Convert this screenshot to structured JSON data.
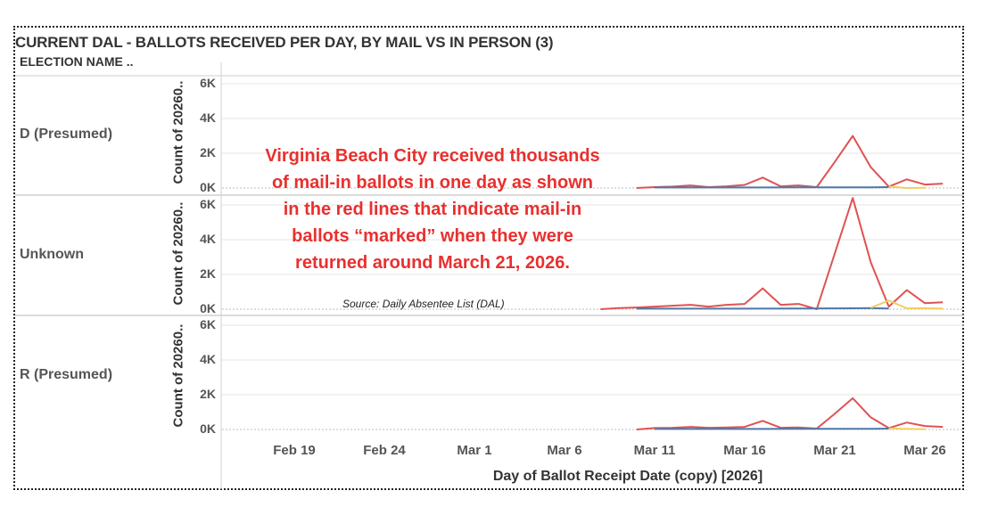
{
  "title": "CURRENT DAL - BALLOTS RECEIVED PER DAY, BY MAIL VS IN PERSON (3)",
  "row_header": "ELECTION NAME ..",
  "colors": {
    "mail": "#e05252",
    "in_person": "#4e79a7",
    "other": "#f1ce63",
    "annotation": "#e8302e",
    "grid": "#e6e6e6",
    "divider": "#cfcfcf"
  },
  "annotation": "Virginia Beach City received thousands of mail-in ballots in one day as shown in the red lines that indicate mail-in ballots “marked” when they were returned around March 21, 2026.",
  "source": "Source: Daily Absentee List (DAL)",
  "chart_data": {
    "type": "line",
    "xlabel": "Day of Ballot Receipt Date (copy) [2026]",
    "ylabel": "Count of 20260..",
    "x_ticks": [
      "Feb 19",
      "Feb 24",
      "Mar 1",
      "Mar 6",
      "Mar 11",
      "Mar 16",
      "Mar 21",
      "Mar 26"
    ],
    "x_dates": [
      "2026-02-19",
      "2026-02-24",
      "2026-03-01",
      "2026-03-06",
      "2026-03-11",
      "2026-03-16",
      "2026-03-21",
      "2026-03-26"
    ],
    "xlim": [
      "2026-02-16",
      "2026-03-27"
    ],
    "y_ticks": [
      "6K",
      "4K",
      "2K",
      "0K"
    ],
    "y_tick_values": [
      6000,
      4000,
      2000,
      0
    ],
    "ylim": [
      0,
      6500
    ],
    "grid": true,
    "panels": [
      {
        "label": "D (Presumed)",
        "series": [
          {
            "color": "mail",
            "points": [
              [
                "2026-03-10",
                0
              ],
              [
                "2026-03-11",
                50
              ],
              [
                "2026-03-12",
                80
              ],
              [
                "2026-03-13",
                150
              ],
              [
                "2026-03-14",
                50
              ],
              [
                "2026-03-15",
                100
              ],
              [
                "2026-03-16",
                180
              ],
              [
                "2026-03-17",
                600
              ],
              [
                "2026-03-18",
                100
              ],
              [
                "2026-03-19",
                150
              ],
              [
                "2026-03-20",
                50
              ],
              [
                "2026-03-21",
                1500
              ],
              [
                "2026-03-22",
                3000
              ],
              [
                "2026-03-23",
                1200
              ],
              [
                "2026-03-24",
                80
              ],
              [
                "2026-03-25",
                500
              ],
              [
                "2026-03-26",
                200
              ],
              [
                "2026-03-27",
                250
              ]
            ]
          },
          {
            "color": "in_person",
            "points": [
              [
                "2026-03-11",
                30
              ],
              [
                "2026-03-14",
                30
              ],
              [
                "2026-03-17",
                30
              ],
              [
                "2026-03-20",
                40
              ],
              [
                "2026-03-23",
                40
              ],
              [
                "2026-03-24",
                50
              ]
            ]
          },
          {
            "color": "other",
            "points": [
              [
                "2026-03-24",
                80
              ],
              [
                "2026-03-25",
                0
              ],
              [
                "2026-03-26",
                10
              ]
            ]
          }
        ]
      },
      {
        "label": "Unknown",
        "series": [
          {
            "color": "mail",
            "points": [
              [
                "2026-03-08",
                0
              ],
              [
                "2026-03-09",
                60
              ],
              [
                "2026-03-10",
                100
              ],
              [
                "2026-03-11",
                150
              ],
              [
                "2026-03-12",
                200
              ],
              [
                "2026-03-13",
                250
              ],
              [
                "2026-03-14",
                150
              ],
              [
                "2026-03-15",
                250
              ],
              [
                "2026-03-16",
                300
              ],
              [
                "2026-03-17",
                1200
              ],
              [
                "2026-03-18",
                250
              ],
              [
                "2026-03-19",
                300
              ],
              [
                "2026-03-20",
                0
              ],
              [
                "2026-03-21",
                3200
              ],
              [
                "2026-03-22",
                6400
              ],
              [
                "2026-03-23",
                2700
              ],
              [
                "2026-03-24",
                150
              ],
              [
                "2026-03-25",
                1100
              ],
              [
                "2026-03-26",
                350
              ],
              [
                "2026-03-27",
                400
              ]
            ]
          },
          {
            "color": "in_person",
            "points": [
              [
                "2026-03-10",
                30
              ],
              [
                "2026-03-13",
                30
              ],
              [
                "2026-03-16",
                30
              ],
              [
                "2026-03-19",
                40
              ],
              [
                "2026-03-22",
                50
              ],
              [
                "2026-03-23",
                60
              ],
              [
                "2026-03-24",
                40
              ]
            ]
          },
          {
            "color": "other",
            "points": [
              [
                "2026-03-23",
                80
              ],
              [
                "2026-03-24",
                500
              ],
              [
                "2026-03-25",
                50
              ],
              [
                "2026-03-26",
                50
              ],
              [
                "2026-03-27",
                40
              ]
            ]
          }
        ]
      },
      {
        "label": "R (Presumed)",
        "series": [
          {
            "color": "mail",
            "points": [
              [
                "2026-03-10",
                0
              ],
              [
                "2026-03-11",
                80
              ],
              [
                "2026-03-12",
                100
              ],
              [
                "2026-03-13",
                150
              ],
              [
                "2026-03-14",
                100
              ],
              [
                "2026-03-15",
                120
              ],
              [
                "2026-03-16",
                150
              ],
              [
                "2026-03-17",
                500
              ],
              [
                "2026-03-18",
                100
              ],
              [
                "2026-03-19",
                120
              ],
              [
                "2026-03-20",
                50
              ],
              [
                "2026-03-21",
                900
              ],
              [
                "2026-03-22",
                1800
              ],
              [
                "2026-03-23",
                700
              ],
              [
                "2026-03-24",
                80
              ],
              [
                "2026-03-25",
                400
              ],
              [
                "2026-03-26",
                200
              ],
              [
                "2026-03-27",
                150
              ]
            ]
          },
          {
            "color": "in_person",
            "points": [
              [
                "2026-03-11",
                30
              ],
              [
                "2026-03-14",
                30
              ],
              [
                "2026-03-17",
                30
              ],
              [
                "2026-03-20",
                40
              ],
              [
                "2026-03-23",
                40
              ],
              [
                "2026-03-24",
                50
              ]
            ]
          },
          {
            "color": "other",
            "points": [
              [
                "2026-03-24",
                60
              ],
              [
                "2026-03-25",
                30
              ],
              [
                "2026-03-26",
                20
              ]
            ]
          }
        ]
      }
    ]
  }
}
